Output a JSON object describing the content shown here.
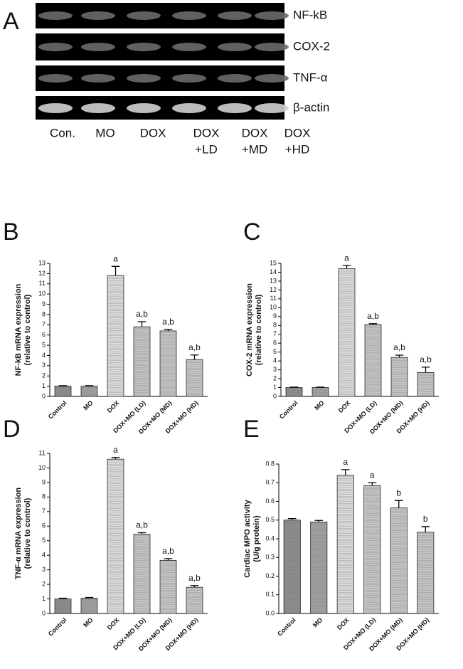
{
  "gel": {
    "panel": "A",
    "genes": [
      "NF-kB",
      "COX-2",
      "TNF-α",
      "β-actin"
    ],
    "lanes": [
      [
        "Con."
      ],
      [
        "MO"
      ],
      [
        "DOX"
      ],
      [
        "DOX",
        "+LD"
      ],
      [
        "DOX",
        "+MD"
      ],
      [
        "DOX",
        "+HD"
      ]
    ]
  },
  "chart_data": [
    {
      "type": "bar",
      "panel": "B",
      "ylabel": [
        "NF-kB mRNA expression",
        "(relative to control)"
      ],
      "categories": [
        "Control",
        "MO",
        "DOX",
        "DOX+MO (LD)",
        "DOX+MO (MD)",
        "DOX+MO (HD)"
      ],
      "values": [
        1.0,
        1.0,
        11.8,
        6.8,
        6.4,
        3.6
      ],
      "errors": [
        0.05,
        0.05,
        0.9,
        0.5,
        0.15,
        0.45
      ],
      "annotations": [
        null,
        null,
        "a",
        "a,b",
        "a,b",
        "a,b"
      ],
      "colors": [
        "#8c8c8c",
        "#a0a0a0",
        "#dadada",
        "#c4c4c4",
        "#c4c4c4",
        "#c4c4c4"
      ],
      "ylim": [
        0,
        13
      ],
      "yticks": [
        0,
        1,
        2,
        3,
        4,
        5,
        6,
        7,
        8,
        9,
        10,
        11,
        12,
        13
      ]
    },
    {
      "type": "bar",
      "panel": "C",
      "ylabel": [
        "COX-2 mRNA expression",
        "(relative to control)"
      ],
      "categories": [
        "Control",
        "MO",
        "DOX",
        "DOX+MO (LD)",
        "DOX+MO (MD)",
        "DOX+MO (HD)"
      ],
      "values": [
        1.0,
        1.0,
        14.4,
        8.1,
        4.4,
        2.7
      ],
      "errors": [
        0.05,
        0.05,
        0.35,
        0.1,
        0.25,
        0.6
      ],
      "annotations": [
        null,
        null,
        "a",
        "a,b",
        "a,b",
        "a,b"
      ],
      "colors": [
        "#8c8c8c",
        "#a0a0a0",
        "#dadada",
        "#c4c4c4",
        "#c4c4c4",
        "#c4c4c4"
      ],
      "ylim": [
        0,
        15
      ],
      "yticks": [
        0,
        1,
        2,
        3,
        4,
        5,
        6,
        7,
        8,
        9,
        10,
        11,
        12,
        13,
        14,
        15
      ]
    },
    {
      "type": "bar",
      "panel": "D",
      "ylabel": [
        "TNF-α mRNA expression",
        "(relative to control)"
      ],
      "categories": [
        "Control",
        "MO",
        "DOX",
        "DOX+MO (LD)",
        "DOX+MO (MD)",
        "DOX+MO (HD)"
      ],
      "values": [
        1.0,
        1.05,
        10.6,
        5.45,
        3.65,
        1.8
      ],
      "errors": [
        0.05,
        0.05,
        0.12,
        0.1,
        0.12,
        0.12
      ],
      "annotations": [
        null,
        null,
        "a",
        "a,b",
        "a,b",
        "a,b"
      ],
      "colors": [
        "#8c8c8c",
        "#a0a0a0",
        "#dadada",
        "#c4c4c4",
        "#c4c4c4",
        "#c4c4c4"
      ],
      "ylim": [
        0,
        11
      ],
      "yticks": [
        0,
        1,
        2,
        3,
        4,
        5,
        6,
        7,
        8,
        9,
        10,
        11
      ]
    },
    {
      "type": "bar",
      "panel": "E",
      "ylabel": [
        "Cardiac MPO activity",
        "(U/g protein)"
      ],
      "categories": [
        "Control",
        "MO",
        "DOX",
        "DOX+MO (LD)",
        "DOX+MO (MD)",
        "DOX+MO (HD)"
      ],
      "values": [
        0.5,
        0.49,
        0.74,
        0.685,
        0.565,
        0.435
      ],
      "errors": [
        0.008,
        0.008,
        0.03,
        0.015,
        0.04,
        0.03
      ],
      "annotations": [
        null,
        null,
        "a",
        "a",
        "b",
        "b"
      ],
      "colors": [
        "#8c8c8c",
        "#a0a0a0",
        "#dadada",
        "#c4c4c4",
        "#c4c4c4",
        "#c4c4c4"
      ],
      "ylim": [
        0,
        0.8
      ],
      "yticks": [
        {
          "value": 0,
          "label": "0.0"
        },
        0.1,
        0.2,
        0.3,
        0.4,
        0.5,
        0.6,
        0.7,
        0.8
      ]
    }
  ]
}
